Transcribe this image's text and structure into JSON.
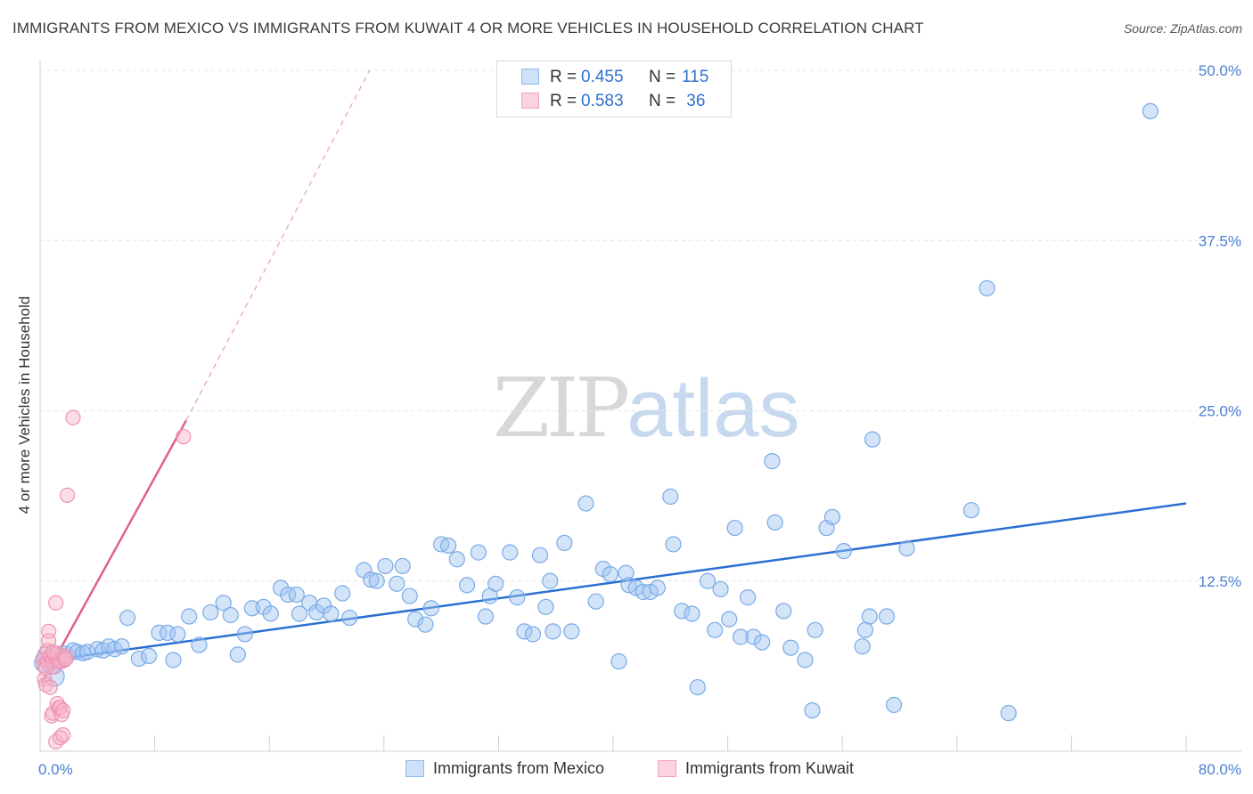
{
  "title": "IMMIGRANTS FROM MEXICO VS IMMIGRANTS FROM KUWAIT 4 OR MORE VEHICLES IN HOUSEHOLD CORRELATION CHART",
  "source": "Source: ZipAtlas.com",
  "watermark": {
    "zip": "ZIP",
    "atlas": "atlas"
  },
  "stats": [
    {
      "r_label": "R =",
      "r_value": "0.455",
      "n_label": "N =",
      "n_value": "115",
      "color": "#9dc3f2"
    },
    {
      "r_label": "R =",
      "r_value": "0.583",
      "n_label": "N =",
      "n_value": " 36",
      "color": "#f6b3c8"
    }
  ],
  "legend": [
    {
      "label": "Immigrants from Mexico",
      "color": "#9dc3f2"
    },
    {
      "label": "Immigrants from Kuwait",
      "color": "#f6b3c8"
    }
  ],
  "chart_data": {
    "type": "scatter",
    "title": "IMMIGRANTS FROM MEXICO VS IMMIGRANTS FROM KUWAIT 4 OR MORE VEHICLES IN HOUSEHOLD CORRELATION CHART",
    "xlabel": "",
    "ylabel": "4 or more Vehicles in Household",
    "xlim": [
      0,
      80
    ],
    "ylim": [
      0,
      50
    ],
    "x_tick_labels": [
      "0.0%",
      "80.0%"
    ],
    "y_ticks": [
      12.5,
      25.0,
      37.5,
      50.0
    ],
    "y_tick_labels": [
      "12.5%",
      "25.0%",
      "37.5%",
      "50.0%"
    ],
    "grid": true,
    "legend_position": "bottom",
    "colors": {
      "mexico": "#9dc3f2",
      "mexico_line": "#2b6fd1",
      "kuwait": "#f6b3c8",
      "kuwait_line": "#e0608a"
    },
    "series": [
      {
        "name": "Immigrants from Mexico",
        "trend": {
          "x0": 0.1,
          "y0": 6.6,
          "x1": 80,
          "y1": 18.2
        },
        "points": [
          [
            0.3,
            6.5
          ],
          [
            0.5,
            7.0
          ],
          [
            0.8,
            6.4
          ],
          [
            1.0,
            5.5
          ],
          [
            1.3,
            6.8
          ],
          [
            1.7,
            7.0
          ],
          [
            2.3,
            7.4
          ],
          [
            2.6,
            7.3
          ],
          [
            3.0,
            7.2
          ],
          [
            3.3,
            7.3
          ],
          [
            4.0,
            7.5
          ],
          [
            4.4,
            7.4
          ],
          [
            4.8,
            7.7
          ],
          [
            5.2,
            7.5
          ],
          [
            5.7,
            7.7
          ],
          [
            6.1,
            9.8
          ],
          [
            6.9,
            6.8
          ],
          [
            7.6,
            7.0
          ],
          [
            8.3,
            8.7
          ],
          [
            8.9,
            8.7
          ],
          [
            9.3,
            6.7
          ],
          [
            9.6,
            8.6
          ],
          [
            10.4,
            9.9
          ],
          [
            11.1,
            7.8
          ],
          [
            11.9,
            10.2
          ],
          [
            12.8,
            10.9
          ],
          [
            13.3,
            10.0
          ],
          [
            13.8,
            7.1
          ],
          [
            14.3,
            8.6
          ],
          [
            14.8,
            10.5
          ],
          [
            15.6,
            10.6
          ],
          [
            16.1,
            10.1
          ],
          [
            16.8,
            12.0
          ],
          [
            17.3,
            11.5
          ],
          [
            17.9,
            11.5
          ],
          [
            18.1,
            10.1
          ],
          [
            18.8,
            10.9
          ],
          [
            19.3,
            10.2
          ],
          [
            19.8,
            10.7
          ],
          [
            20.3,
            10.1
          ],
          [
            21.1,
            11.6
          ],
          [
            21.6,
            9.8
          ],
          [
            22.6,
            13.3
          ],
          [
            23.1,
            12.6
          ],
          [
            23.5,
            12.5
          ],
          [
            24.1,
            13.6
          ],
          [
            24.9,
            12.3
          ],
          [
            25.3,
            13.6
          ],
          [
            25.8,
            11.4
          ],
          [
            26.2,
            9.7
          ],
          [
            26.9,
            9.3
          ],
          [
            27.3,
            10.5
          ],
          [
            28.0,
            15.2
          ],
          [
            28.5,
            15.1
          ],
          [
            29.1,
            14.1
          ],
          [
            29.8,
            12.2
          ],
          [
            30.6,
            14.6
          ],
          [
            31.1,
            9.9
          ],
          [
            31.4,
            11.4
          ],
          [
            31.8,
            12.3
          ],
          [
            32.8,
            14.6
          ],
          [
            33.3,
            11.3
          ],
          [
            33.8,
            8.8
          ],
          [
            34.4,
            8.6
          ],
          [
            34.9,
            14.4
          ],
          [
            35.3,
            10.6
          ],
          [
            35.6,
            12.5
          ],
          [
            35.8,
            8.8
          ],
          [
            36.6,
            15.3
          ],
          [
            37.1,
            8.8
          ],
          [
            38.1,
            18.2
          ],
          [
            38.8,
            11.0
          ],
          [
            39.3,
            13.4
          ],
          [
            39.8,
            13.0
          ],
          [
            40.4,
            6.6
          ],
          [
            40.9,
            13.1
          ],
          [
            41.1,
            12.2
          ],
          [
            41.6,
            12.0
          ],
          [
            42.1,
            11.7
          ],
          [
            42.6,
            11.7
          ],
          [
            43.1,
            12.0
          ],
          [
            44.0,
            18.7
          ],
          [
            44.2,
            15.2
          ],
          [
            44.8,
            10.3
          ],
          [
            45.5,
            10.1
          ],
          [
            45.9,
            4.7
          ],
          [
            46.6,
            12.5
          ],
          [
            47.1,
            8.9
          ],
          [
            47.5,
            11.9
          ],
          [
            48.1,
            9.7
          ],
          [
            48.5,
            16.4
          ],
          [
            48.9,
            8.4
          ],
          [
            49.4,
            11.3
          ],
          [
            49.8,
            8.4
          ],
          [
            50.4,
            8.0
          ],
          [
            51.1,
            21.3
          ],
          [
            51.3,
            16.8
          ],
          [
            51.9,
            10.3
          ],
          [
            52.4,
            7.6
          ],
          [
            53.4,
            6.7
          ],
          [
            53.9,
            3.0
          ],
          [
            54.1,
            8.9
          ],
          [
            54.9,
            16.4
          ],
          [
            55.3,
            17.2
          ],
          [
            56.1,
            14.7
          ],
          [
            57.4,
            7.7
          ],
          [
            57.6,
            8.9
          ],
          [
            57.9,
            9.9
          ],
          [
            58.1,
            22.9
          ],
          [
            59.1,
            9.9
          ],
          [
            59.6,
            3.4
          ],
          [
            60.5,
            14.9
          ],
          [
            65.0,
            17.7
          ],
          [
            66.1,
            34.0
          ],
          [
            67.6,
            2.8
          ],
          [
            77.5,
            47.0
          ]
        ],
        "sizes_note": "larger markers near origin"
      },
      {
        "name": "Immigrants from Kuwait",
        "trend": {
          "x0": 0.1,
          "y0": 5.0,
          "x1": 10.2,
          "y1": 24.3,
          "dashed_to": {
            "x": 23.0,
            "y": 50.0
          }
        },
        "points": [
          [
            0.2,
            6.8
          ],
          [
            0.3,
            6.3
          ],
          [
            0.3,
            5.3
          ],
          [
            0.4,
            4.9
          ],
          [
            0.5,
            6.6
          ],
          [
            0.5,
            7.4
          ],
          [
            0.6,
            8.8
          ],
          [
            0.6,
            8.1
          ],
          [
            0.7,
            6.9
          ],
          [
            0.7,
            4.7
          ],
          [
            0.8,
            2.6
          ],
          [
            0.8,
            6.6
          ],
          [
            0.9,
            6.7
          ],
          [
            0.9,
            2.8
          ],
          [
            1.0,
            7.1
          ],
          [
            1.0,
            6.2
          ],
          [
            1.1,
            0.7
          ],
          [
            1.1,
            10.9
          ],
          [
            1.2,
            3.5
          ],
          [
            1.2,
            7.2
          ],
          [
            1.3,
            3.2
          ],
          [
            1.3,
            6.6
          ],
          [
            1.4,
            1.0
          ],
          [
            1.4,
            3.2
          ],
          [
            1.5,
            6.6
          ],
          [
            1.5,
            2.7
          ],
          [
            1.6,
            1.2
          ],
          [
            1.6,
            3.0
          ],
          [
            1.7,
            6.7
          ],
          [
            1.7,
            7.0
          ],
          [
            1.8,
            6.8
          ],
          [
            1.9,
            18.8
          ],
          [
            2.3,
            24.5
          ],
          [
            10.0,
            23.1
          ],
          [
            0.4,
            6.1
          ],
          [
            0.9,
            7.3
          ]
        ]
      }
    ]
  }
}
